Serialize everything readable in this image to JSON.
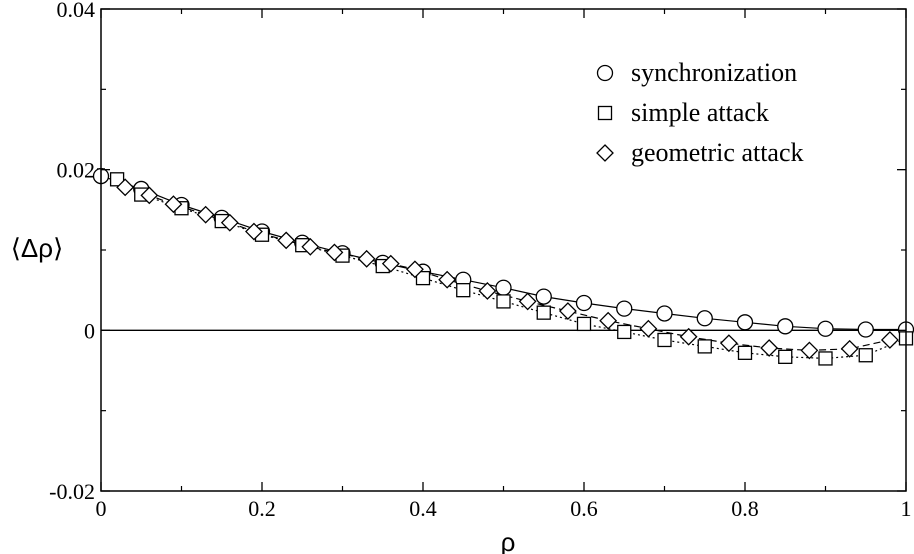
{
  "chart_data": {
    "type": "scatter",
    "title": "",
    "xlabel": "ρ",
    "ylabel": "⟨Δρ⟩",
    "xlim": [
      0,
      1
    ],
    "ylim": [
      -0.02,
      0.04
    ],
    "x_ticks": [
      "0",
      "0.2",
      "0.4",
      "0.6",
      "0.8",
      "1"
    ],
    "y_ticks": [
      "-0.02",
      "0",
      "0.02",
      "0.04"
    ],
    "grid": false,
    "legend_position": "top-right",
    "reference_line_y": 0,
    "series": [
      {
        "name": "synchronization",
        "marker": "circle",
        "line": "solid",
        "x": [
          0,
          0.05,
          0.1,
          0.15,
          0.2,
          0.25,
          0.3,
          0.35,
          0.4,
          0.45,
          0.5,
          0.55,
          0.6,
          0.65,
          0.7,
          0.75,
          0.8,
          0.85,
          0.9,
          0.95,
          1.0
        ],
        "y": [
          0.0192,
          0.0176,
          0.0156,
          0.014,
          0.0123,
          0.0109,
          0.0096,
          0.0084,
          0.0073,
          0.0063,
          0.0053,
          0.0042,
          0.0034,
          0.0027,
          0.0021,
          0.0015,
          0.001,
          0.0005,
          0.0002,
          0.0001,
          0.0001
        ]
      },
      {
        "name": "simple attack",
        "marker": "square",
        "line": "dotted",
        "x": [
          0.02,
          0.05,
          0.1,
          0.15,
          0.2,
          0.25,
          0.3,
          0.35,
          0.4,
          0.45,
          0.5,
          0.55,
          0.6,
          0.65,
          0.7,
          0.75,
          0.8,
          0.85,
          0.9,
          0.95,
          1.0
        ],
        "y": [
          0.0188,
          0.0169,
          0.0152,
          0.0136,
          0.0119,
          0.0106,
          0.0093,
          0.008,
          0.0065,
          0.005,
          0.0036,
          0.0022,
          0.0008,
          -0.0002,
          -0.0012,
          -0.002,
          -0.0028,
          -0.0033,
          -0.0035,
          -0.0031,
          -0.001
        ]
      },
      {
        "name": "geometric attack",
        "marker": "diamond",
        "line": "dashed",
        "x": [
          0.03,
          0.06,
          0.09,
          0.13,
          0.16,
          0.19,
          0.23,
          0.26,
          0.29,
          0.33,
          0.36,
          0.39,
          0.43,
          0.48,
          0.53,
          0.58,
          0.63,
          0.68,
          0.73,
          0.78,
          0.83,
          0.88,
          0.93,
          0.98
        ],
        "y": [
          0.0178,
          0.0168,
          0.0157,
          0.0144,
          0.0134,
          0.0123,
          0.0112,
          0.0104,
          0.0097,
          0.0089,
          0.0083,
          0.0076,
          0.0063,
          0.0049,
          0.0036,
          0.0024,
          0.0012,
          0.0002,
          -0.0008,
          -0.0016,
          -0.0022,
          -0.0025,
          -0.0023,
          -0.0012
        ]
      }
    ]
  }
}
